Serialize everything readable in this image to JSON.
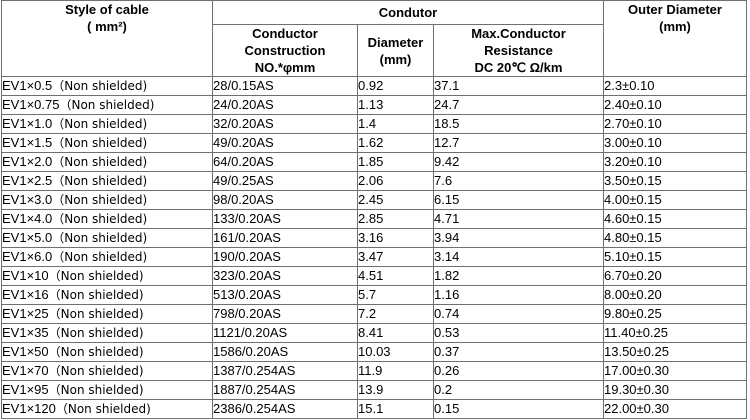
{
  "headers": {
    "style": [
      "Style of cable",
      "( mm²)"
    ],
    "group": "Condutor",
    "construction": [
      "Conductor",
      "Construction",
      "NO.*φmm"
    ],
    "diameter": [
      "Diameter",
      "(mm)"
    ],
    "resistance": [
      "Max.Conductor",
      "Resistance",
      "DC 20℃ Ω/km"
    ],
    "outer": [
      "Outer Diameter",
      "(mm)"
    ]
  },
  "rows": [
    {
      "style": "EV1×0.5",
      "note": "（Non shielded)",
      "construction": "28/0.15AS",
      "diameter": "0.92",
      "resistance": "37.1",
      "outer": "2.3±0.10"
    },
    {
      "style": "EV1×0.75",
      "note": "（Non shielded)",
      "construction": "24/0.20AS",
      "diameter": "1.13",
      "resistance": "24.7",
      "outer": "2.40±0.10"
    },
    {
      "style": "EV1×1.0",
      "note": "（Non shielded)",
      "construction": "32/0.20AS",
      "diameter": "1.4",
      "resistance": "18.5",
      "outer": "2.70±0.10"
    },
    {
      "style": "EV1×1.5",
      "note": "（Non shielded)",
      "construction": "49/0.20AS",
      "diameter": "1.62",
      "resistance": "12.7",
      "outer": "3.00±0.10"
    },
    {
      "style": "EV1×2.0",
      "note": "（Non shielded)",
      "construction": "64/0.20AS",
      "diameter": "1.85",
      "resistance": "9.42",
      "outer": "3.20±0.10"
    },
    {
      "style": "EV1×2.5",
      "note": "（Non shielded)",
      "construction": "49/0.25AS",
      "diameter": "2.06",
      "resistance": "7.6",
      "outer": "3.50±0.15"
    },
    {
      "style": "EV1×3.0",
      "note": "（Non shielded)",
      "construction": "98/0.20AS",
      "diameter": "2.45",
      "resistance": "6.15",
      "outer": "4.00±0.15"
    },
    {
      "style": "EV1×4.0",
      "note": "（Non shielded)",
      "construction": "133/0.20AS",
      "diameter": "2.85",
      "resistance": "4.71",
      "outer": "4.60±0.15"
    },
    {
      "style": "EV1×5.0",
      "note": "（Non shielded)",
      "construction": "161/0.20AS",
      "diameter": "3.16",
      "resistance": "3.94",
      "outer": "4.80±0.15"
    },
    {
      "style": "EV1×6.0",
      "note": "（Non shielded)",
      "construction": "190/0.20AS",
      "diameter": "3.47",
      "resistance": "3.14",
      "outer": "5.10±0.15"
    },
    {
      "style": "EV1×10",
      "note": "（Non shielded)",
      "construction": "323/0.20AS",
      "diameter": "4.51",
      "resistance": "1.82",
      "outer": "6.70±0.20"
    },
    {
      "style": "EV1×16",
      "note": "（Non shielded)",
      "construction": "513/0.20AS",
      "diameter": "5.7",
      "resistance": "1.16",
      "outer": "8.00±0.20"
    },
    {
      "style": "EV1×25",
      "note": "（Non shielded)",
      "construction": "798/0.20AS",
      "diameter": "7.2",
      "resistance": "0.74",
      "outer": "9.80±0.25"
    },
    {
      "style": "EV1×35",
      "note": "（Non shielded)",
      "construction": "1121/0.20AS",
      "diameter": "8.41",
      "resistance": "0.53",
      "outer": "11.40±0.25"
    },
    {
      "style": "EV1×50",
      "note": "（Non shielded)",
      "construction": "1586/0.20AS",
      "diameter": "10.03",
      "resistance": "0.37",
      "outer": "13.50±0.25"
    },
    {
      "style": "EV1×70",
      "note": "（Non shielded)",
      "construction": "1387/0.254AS",
      "diameter": "11.9",
      "resistance": "0.26",
      "outer": "17.00±0.30"
    },
    {
      "style": "EV1×95",
      "note": "（Non shielded)",
      "construction": "1887/0.254AS",
      "diameter": "13.9",
      "resistance": "0.2",
      "outer": "19.30±0.30"
    },
    {
      "style": "EV1×120",
      "note": "（Non shielded)",
      "construction": "2386/0.254AS",
      "diameter": "15.1",
      "resistance": "0.15",
      "outer": "22.00±0.30"
    }
  ]
}
